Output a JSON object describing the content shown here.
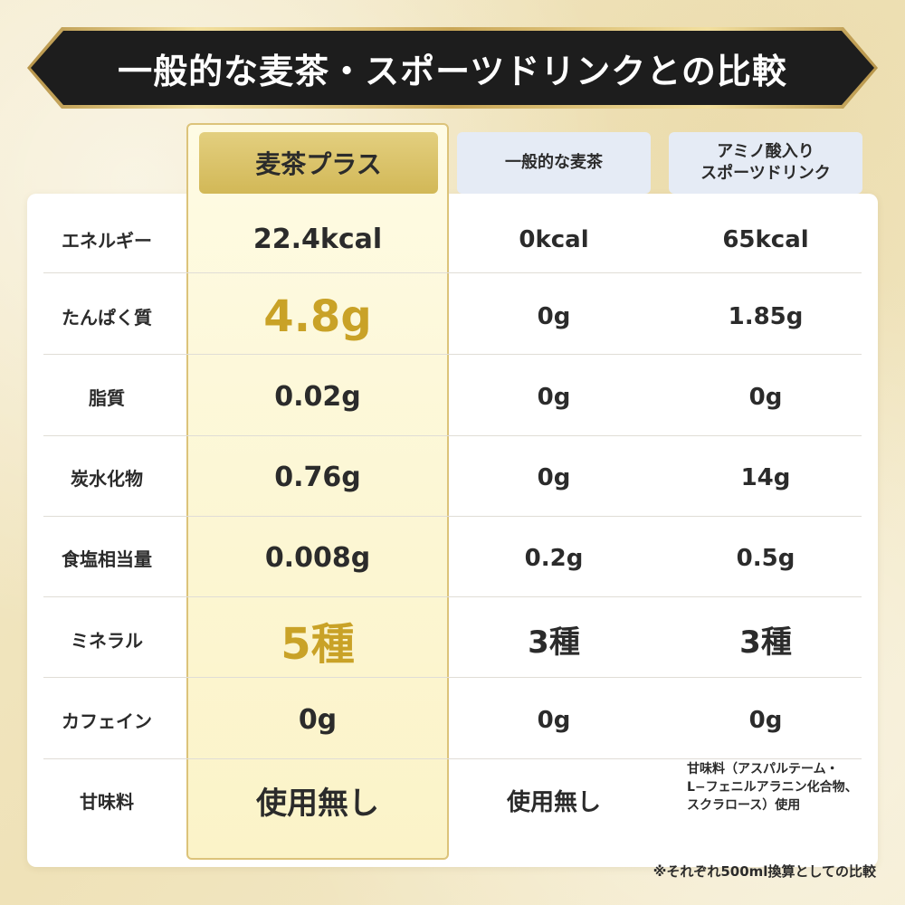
{
  "title": "一般的な麦茶・スポーツドリンクとの比較",
  "columns": {
    "main": "麦茶プラス",
    "col2": "一般的な麦茶",
    "col3_line1": "アミノ酸入り",
    "col3_line2": "スポーツドリンク"
  },
  "rows": [
    {
      "label": "エネルギー",
      "main": "22.4kcal",
      "col2": "0kcal",
      "col3": "65kcal"
    },
    {
      "label": "たんぱく質",
      "main": "4.8g",
      "col2": "0g",
      "col3": "1.85g"
    },
    {
      "label": "脂質",
      "main": "0.02g",
      "col2": "0g",
      "col3": "0g"
    },
    {
      "label": "炭水化物",
      "main": "0.76g",
      "col2": "0g",
      "col3": "14g"
    },
    {
      "label": "食塩相当量",
      "main": "0.008g",
      "col2": "0.2g",
      "col3": "0.5g"
    },
    {
      "label": "ミネラル",
      "main": "5種",
      "col2": "3種",
      "col3": "3種"
    },
    {
      "label": "カフェイン",
      "main": "0g",
      "col2": "0g",
      "col3": "0g"
    },
    {
      "label": "甘味料",
      "main": "使用無し",
      "col2": "使用無し",
      "col3_line1": "甘味料（アスパルテーム・",
      "col3_line2": "L−フェニルアラニン化合物、",
      "col3_line3": "スクラロース）使用"
    }
  ],
  "footnote": "※それぞれ500ml換算としての比較",
  "colors": {
    "accent_gold": "#c9a227",
    "header_gold": "#d2b857",
    "header_blue": "#e5ebf5",
    "banner": "#1d1d1d"
  }
}
